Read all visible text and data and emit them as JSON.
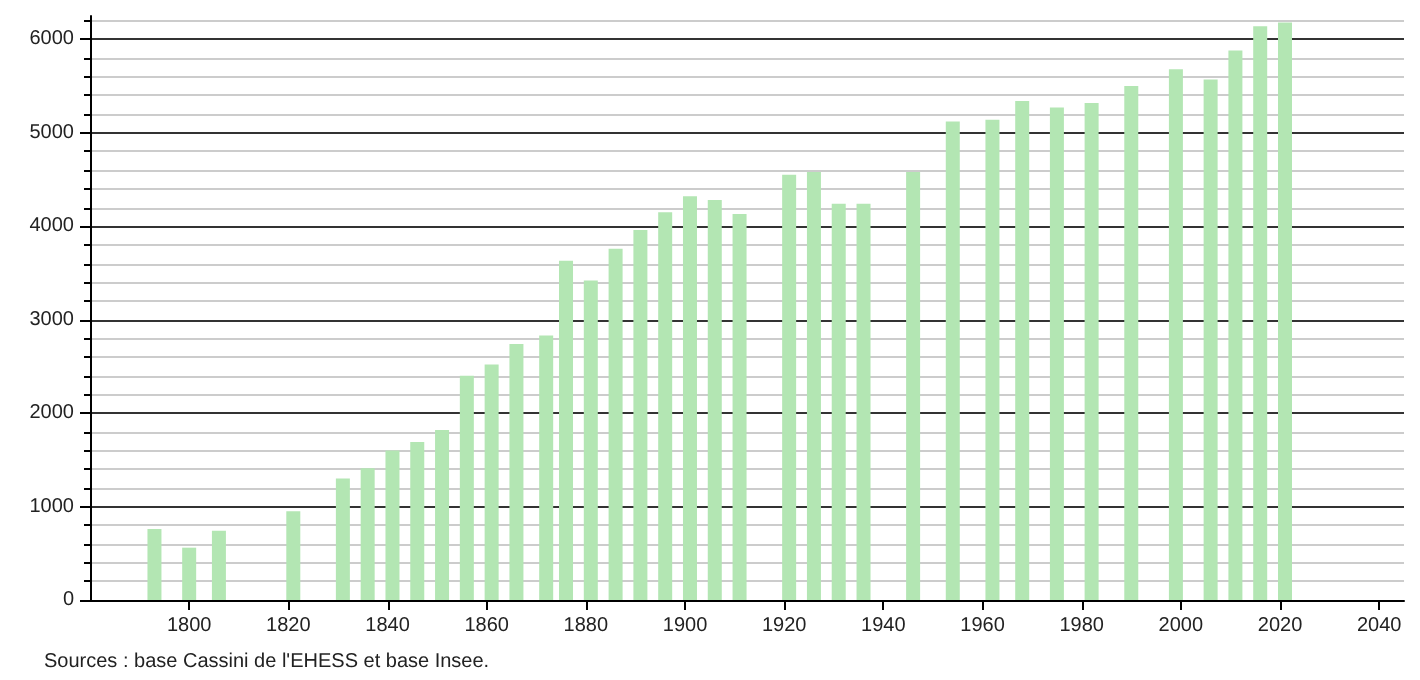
{
  "chart_data": {
    "type": "bar",
    "x": [
      1793,
      1800,
      1806,
      1821,
      1831,
      1836,
      1841,
      1846,
      1851,
      1856,
      1861,
      1866,
      1872,
      1876,
      1881,
      1886,
      1891,
      1896,
      1901,
      1906,
      1911,
      1921,
      1926,
      1931,
      1936,
      1946,
      1954,
      1962,
      1968,
      1975,
      1982,
      1990,
      1999,
      2006,
      2011,
      2016,
      2021
    ],
    "values": [
      760,
      560,
      740,
      950,
      1300,
      1410,
      1600,
      1690,
      1820,
      2400,
      2520,
      2740,
      2830,
      3630,
      3420,
      3760,
      3960,
      4150,
      4320,
      4280,
      4130,
      4550,
      4580,
      4240,
      4240,
      4580,
      5120,
      5140,
      5340,
      5270,
      5320,
      5500,
      5680,
      5570,
      5880,
      6140,
      6180
    ],
    "color": "#b3e6b3",
    "xlim": [
      1780,
      2045
    ],
    "xticks": [
      1800,
      1820,
      1840,
      1860,
      1880,
      1900,
      1920,
      1940,
      1960,
      1980,
      2000,
      2020,
      2040
    ],
    "ylim": [
      0,
      6250
    ],
    "yticks": [
      0,
      1000,
      2000,
      3000,
      4000,
      5000,
      6000
    ],
    "grid": "y",
    "annotations": [
      "Sources : base Cassini de l'EHESS et base Insee."
    ]
  }
}
